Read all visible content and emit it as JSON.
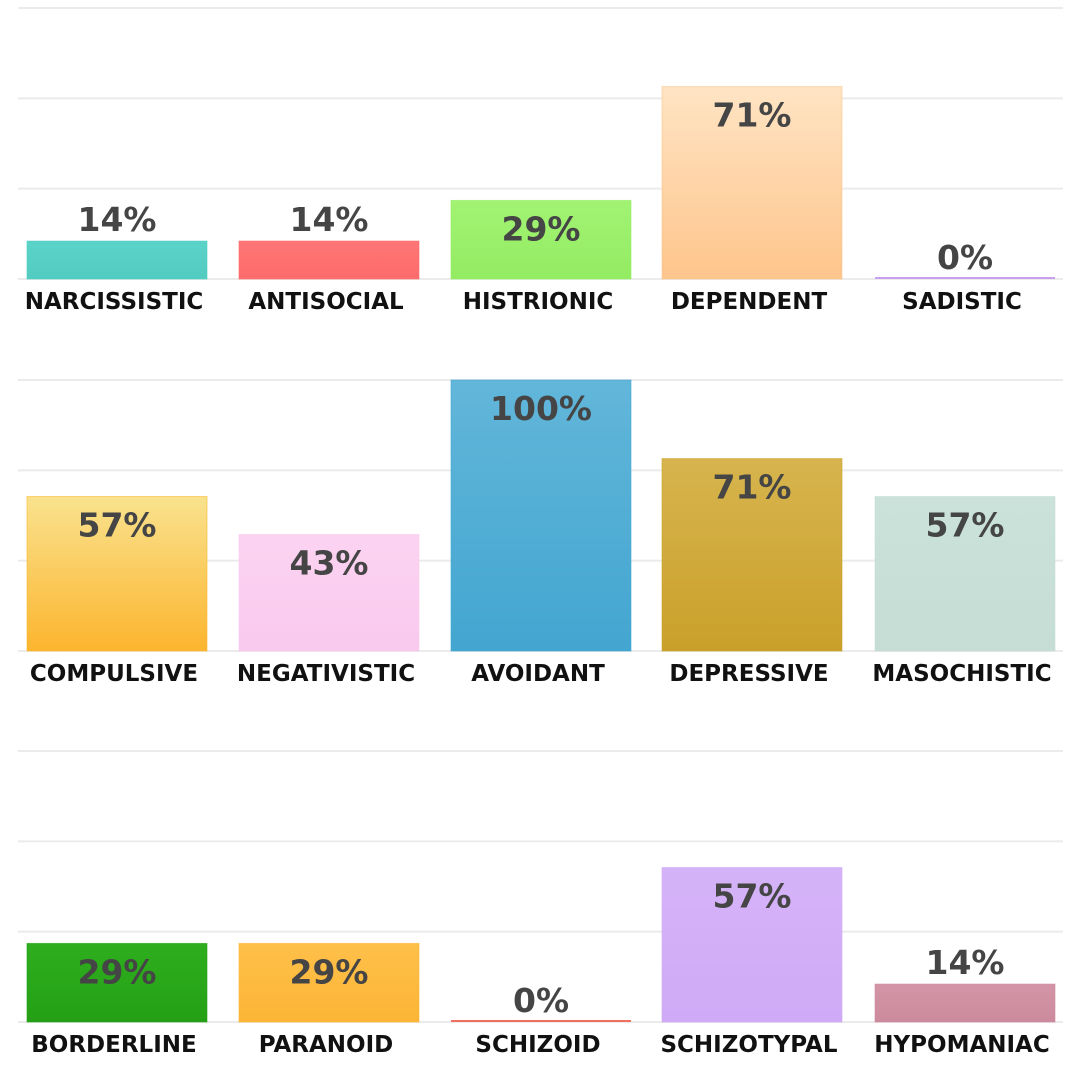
{
  "chart_data": [
    {
      "type": "bar",
      "categories": [
        "NARCISSISTIC",
        "ANTISOCIAL",
        "HISTRIONIC",
        "DEPENDENT",
        "SADISTIC"
      ],
      "values": [
        14,
        14,
        29,
        71,
        0
      ],
      "labels": [
        "14%",
        "14%",
        "29%",
        "71%",
        "0%"
      ],
      "colors": [
        [
          "#5ad3c9",
          "#52cbc1"
        ],
        [
          "#ff7676",
          "#fd6b6b"
        ],
        [
          "#a2f373",
          "#93ec62"
        ],
        [
          "#ffe4c4",
          "#fec58c"
        ],
        [
          "#c9a0f0",
          "#c9a0f0"
        ]
      ],
      "ylim": [
        0,
        100
      ],
      "grid": true
    },
    {
      "type": "bar",
      "categories": [
        "COMPULSIVE",
        "NEGATIVISTIC",
        "AVOIDANT",
        "DEPRESSIVE",
        "MASOCHISTIC"
      ],
      "values": [
        57,
        43,
        100,
        71,
        57
      ],
      "labels": [
        "57%",
        "43%",
        "100%",
        "71%",
        "57%"
      ],
      "colors": [
        [
          "#f9e28e",
          "#fcb52e"
        ],
        [
          "#fbd3f1",
          "#fac9ee"
        ],
        [
          "#62b6da",
          "#43a6d0"
        ],
        [
          "#d7b44e",
          "#c9a02a"
        ],
        [
          "#cae2da",
          "#c5ddd5"
        ]
      ],
      "ylim": [
        0,
        100
      ],
      "grid": true
    },
    {
      "type": "bar",
      "categories": [
        "BORDERLINE",
        "PARANOID",
        "SCHIZOID",
        "SCHIZOTYPAL",
        "HYPOMANIAC"
      ],
      "values": [
        29,
        29,
        0,
        57,
        14
      ],
      "labels": [
        "29%",
        "29%",
        "0%",
        "57%",
        "14%"
      ],
      "colors": [
        [
          "#2eae1e",
          "#25a016"
        ],
        [
          "#fec04a",
          "#fcb535"
        ],
        [
          "#f07060",
          "#f07060"
        ],
        [
          "#d5b3f8",
          "#cfaaf6"
        ],
        [
          "#d395a7",
          "#cc8a9d"
        ]
      ],
      "ylim": [
        0,
        100
      ],
      "grid": true
    }
  ]
}
